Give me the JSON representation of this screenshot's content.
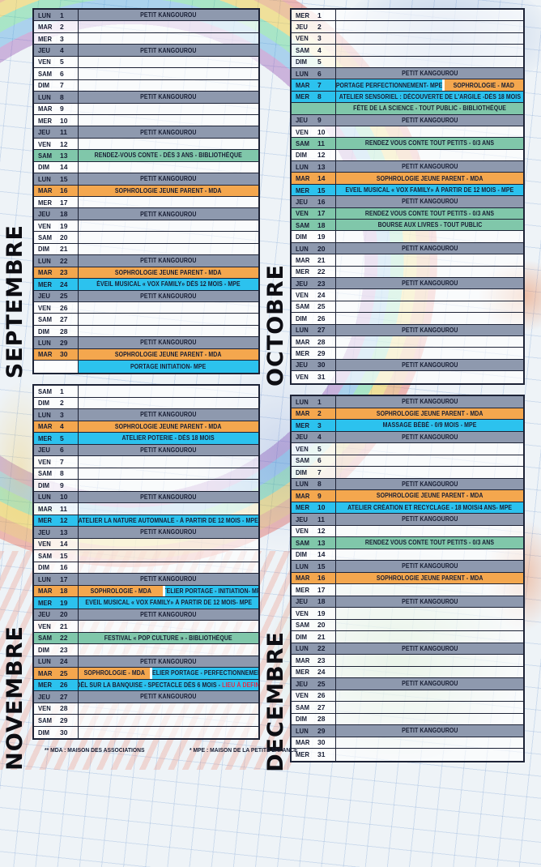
{
  "palette": {
    "gray": "#8e99ae",
    "orange": "#f4a74e",
    "cyan": "#2cc2ee",
    "teal": "#80c7aa",
    "red": "#e02a46",
    "empty_event": "rgba(255,255,255,0.60)",
    "empty_day": "rgba(255,255,255,0.78)"
  },
  "footer": {
    "mda": "** MDA : MAISON DES ASSOCIATIONS",
    "mpe": "* MPE : MAISON DE LA PETITE ENFANCE"
  },
  "months": [
    {
      "name": "SEPTEMBRE",
      "rows": [
        {
          "d": "LUN",
          "n": "1",
          "c": [
            {
              "t": "PETIT KANGOUROU",
              "k": "gray"
            }
          ]
        },
        {
          "d": "MAR",
          "n": "2",
          "c": []
        },
        {
          "d": "MER",
          "n": "3",
          "c": []
        },
        {
          "d": "JEU",
          "n": "4",
          "c": [
            {
              "t": "PETIT KANGOUROU",
              "k": "gray"
            }
          ]
        },
        {
          "d": "VEN",
          "n": "5",
          "c": []
        },
        {
          "d": "SAM",
          "n": "6",
          "c": []
        },
        {
          "d": "DIM",
          "n": "7",
          "c": []
        },
        {
          "d": "LUN",
          "n": "8",
          "c": [
            {
              "t": "PETIT KANGOUROU",
              "k": "gray"
            }
          ]
        },
        {
          "d": "MAR",
          "n": "9",
          "c": []
        },
        {
          "d": "MER",
          "n": "10",
          "c": []
        },
        {
          "d": "JEU",
          "n": "11",
          "c": [
            {
              "t": "PETIT KANGOUROU",
              "k": "gray"
            }
          ]
        },
        {
          "d": "VEN",
          "n": "12",
          "c": []
        },
        {
          "d": "SAM",
          "n": "13",
          "c": [
            {
              "t": "RENDEZ-VOUS CONTE - DÈS 3 ANS - BIBLIOTHÈQUE",
              "k": "teal"
            }
          ]
        },
        {
          "d": "DIM",
          "n": "14",
          "c": []
        },
        {
          "d": "LUN",
          "n": "15",
          "c": [
            {
              "t": "PETIT KANGOUROU",
              "k": "gray"
            }
          ]
        },
        {
          "d": "MAR",
          "n": "16",
          "c": [
            {
              "t": "SOPHROLOGIE JEUNE PARENT - MDA",
              "k": "orange"
            }
          ]
        },
        {
          "d": "MER",
          "n": "17",
          "c": []
        },
        {
          "d": "JEU",
          "n": "18",
          "c": [
            {
              "t": "PETIT KANGOUROU",
              "k": "gray"
            }
          ]
        },
        {
          "d": "VEN",
          "n": "19",
          "c": []
        },
        {
          "d": "SAM",
          "n": "20",
          "c": []
        },
        {
          "d": "DIM",
          "n": "21",
          "c": []
        },
        {
          "d": "LUN",
          "n": "22",
          "c": [
            {
              "t": "PETIT KANGOUROU",
              "k": "gray"
            }
          ]
        },
        {
          "d": "MAR",
          "n": "23",
          "c": [
            {
              "t": "SOPHROLOGIE JEUNE PARENT - MDA",
              "k": "orange"
            }
          ]
        },
        {
          "d": "MER",
          "n": "24",
          "c": [
            {
              "t": "ÉVEIL MUSICAL « VOX FAMILY» DÈS 12 MOIS - MPE",
              "k": "cyan"
            }
          ]
        },
        {
          "d": "JEU",
          "n": "25",
          "c": [
            {
              "t": "PETIT KANGOUROU",
              "k": "gray"
            }
          ]
        },
        {
          "d": "VEN",
          "n": "26",
          "c": []
        },
        {
          "d": "SAM",
          "n": "27",
          "c": []
        },
        {
          "d": "DIM",
          "n": "28",
          "c": []
        },
        {
          "d": "LUN",
          "n": "29",
          "c": [
            {
              "t": "PETIT KANGOUROU",
              "k": "gray"
            }
          ]
        },
        {
          "d": "MAR",
          "n": "30",
          "c": [
            {
              "t": "SOPHROLOGIE JEUNE PARENT - MDA",
              "k": "orange"
            }
          ]
        },
        {
          "d": "",
          "n": "",
          "dc": "none",
          "c": [
            {
              "t": "PORTAGE INITIATION- MPE",
              "k": "cyan"
            }
          ]
        }
      ]
    },
    {
      "name": "OCTOBRE",
      "rows": [
        {
          "d": "MER",
          "n": "1",
          "c": []
        },
        {
          "d": "JEU",
          "n": "2",
          "c": []
        },
        {
          "d": "VEN",
          "n": "3",
          "c": []
        },
        {
          "d": "SAM",
          "n": "4",
          "c": []
        },
        {
          "d": "DIM",
          "n": "5",
          "c": []
        },
        {
          "d": "LUN",
          "n": "6",
          "c": [
            {
              "t": "PETIT KANGOUROU",
              "k": "gray"
            }
          ]
        },
        {
          "d": "MAR",
          "n": "7",
          "c": [
            {
              "t": "PORTAGE PERFECTIONNEMENT- MPE",
              "k": "cyan",
              "f": "1.15"
            },
            {
              "t": "SOPHROLOGIE - MAD",
              "k": "orange",
              "f": "0.85"
            }
          ]
        },
        {
          "d": "MER",
          "n": "8",
          "c": [
            {
              "t": "ATELIER SENSORIEL : DÉCOUVERTE DE L'ARGILE -DÈS 18 MOIS",
              "k": "cyan"
            }
          ]
        },
        {
          "d": "",
          "n": "",
          "dc": "teal",
          "c": [
            {
              "t": "FÊTE DE LA SCIENCE - TOUT PUBLIC - BIBLIOTHÈQUE",
              "k": "teal"
            }
          ]
        },
        {
          "d": "JEU",
          "n": "9",
          "c": [
            {
              "t": "PETIT KANGOUROU",
              "k": "gray"
            }
          ]
        },
        {
          "d": "VEN",
          "n": "10",
          "c": []
        },
        {
          "d": "SAM",
          "n": "11",
          "c": [
            {
              "t": "RENDEZ VOUS CONTE TOUT PETITS - 0/3 ANS",
              "k": "teal"
            }
          ]
        },
        {
          "d": "DIM",
          "n": "12",
          "c": []
        },
        {
          "d": "LUN",
          "n": "13",
          "c": [
            {
              "t": "PETIT KANGOUROU",
              "k": "gray"
            }
          ]
        },
        {
          "d": "MAR",
          "n": "14",
          "c": [
            {
              "t": "SOPHROLOGIE JEUNE PARENT - MDA",
              "k": "orange"
            }
          ]
        },
        {
          "d": "MER",
          "n": "15",
          "c": [
            {
              "t": "EVEIL MUSICAL « VOX FAMILY» À PARTIR DE 12 MOIS - MPE",
              "k": "cyan"
            }
          ]
        },
        {
          "d": "JEU",
          "n": "16",
          "c": [
            {
              "t": "PETIT KANGOUROU",
              "k": "gray"
            }
          ]
        },
        {
          "d": "VEN",
          "n": "17",
          "c": [
            {
              "t": "RENDEZ VOUS CONTE TOUT PETITS - 0/3 ANS",
              "k": "teal"
            }
          ]
        },
        {
          "d": "SAM",
          "n": "18",
          "c": [
            {
              "t": "BOURSE AUX LIVRES - TOUT PUBLIC",
              "k": "teal"
            }
          ]
        },
        {
          "d": "DIM",
          "n": "19",
          "c": []
        },
        {
          "d": "LUN",
          "n": "20",
          "c": [
            {
              "t": "PETIT KANGOUROU",
              "k": "gray"
            }
          ]
        },
        {
          "d": "MAR",
          "n": "21",
          "c": []
        },
        {
          "d": "MER",
          "n": "22",
          "c": []
        },
        {
          "d": "JEU",
          "n": "23",
          "c": [
            {
              "t": "PETIT KANGOUROU",
              "k": "gray"
            }
          ]
        },
        {
          "d": "VEN",
          "n": "24",
          "c": []
        },
        {
          "d": "SAM",
          "n": "25",
          "c": []
        },
        {
          "d": "DIM",
          "n": "26",
          "c": []
        },
        {
          "d": "LUN",
          "n": "27",
          "c": [
            {
              "t": "PETIT KANGOUROU",
              "k": "gray"
            }
          ]
        },
        {
          "d": "MAR",
          "n": "28",
          "c": []
        },
        {
          "d": "MER",
          "n": "29",
          "c": []
        },
        {
          "d": "JEU",
          "n": "30",
          "c": [
            {
              "t": "PETIT KANGOUROU",
              "k": "gray"
            }
          ]
        },
        {
          "d": "VEN",
          "n": "31",
          "c": []
        }
      ]
    },
    {
      "name": "NOVEMBRE",
      "rows": [
        {
          "d": "SAM",
          "n": "1",
          "c": []
        },
        {
          "d": "DIM",
          "n": "2",
          "c": []
        },
        {
          "d": "LUN",
          "n": "3",
          "c": [
            {
              "t": "PETIT KANGOUROU",
              "k": "gray"
            }
          ]
        },
        {
          "d": "MAR",
          "n": "4",
          "c": [
            {
              "t": "SOPHROLOGIE JEUNE PARENT - MDA",
              "k": "orange"
            }
          ]
        },
        {
          "d": "MER",
          "n": "5",
          "c": [
            {
              "t": "ATELIER POTERIE - DÈS 18 MOIS",
              "k": "cyan"
            }
          ]
        },
        {
          "d": "JEU",
          "n": "6",
          "c": [
            {
              "t": "PETIT KANGOUROU",
              "k": "gray"
            }
          ]
        },
        {
          "d": "VEN",
          "n": "7",
          "c": []
        },
        {
          "d": "SAM",
          "n": "8",
          "c": []
        },
        {
          "d": "DIM",
          "n": "9",
          "c": []
        },
        {
          "d": "LUN",
          "n": "10",
          "c": [
            {
              "t": "PETIT KANGOUROU",
              "k": "gray"
            }
          ]
        },
        {
          "d": "MAR",
          "n": "11",
          "c": []
        },
        {
          "d": "MER",
          "n": "12",
          "c": [
            {
              "t": "ATELIER LA NATURE AUTOMNALE - À PARTIR DE 12 MOIS - MPE",
              "k": "cyan"
            }
          ]
        },
        {
          "d": "JEU",
          "n": "13",
          "c": [
            {
              "t": "PETIT KANGOUROU",
              "k": "gray"
            }
          ]
        },
        {
          "d": "VEN",
          "n": "14",
          "c": []
        },
        {
          "d": "SAM",
          "n": "15",
          "c": []
        },
        {
          "d": "DIM",
          "n": "16",
          "c": []
        },
        {
          "d": "LUN",
          "n": "17",
          "c": [
            {
              "t": "PETIT KANGOUROU",
              "k": "gray"
            }
          ]
        },
        {
          "d": "MAR",
          "n": "18",
          "c": [
            {
              "t": "SOPHROLOGIE - MDA",
              "k": "orange",
              "f": "0.95"
            },
            {
              "t": "ATELIER PORTAGE - INITIATION- MPE",
              "k": "cyan",
              "f": "1.05"
            }
          ]
        },
        {
          "d": "MER",
          "n": "19",
          "c": [
            {
              "t": "EVEIL MUSICAL « VOX FAMILY» À PARTIR DE 12 MOIS- MPE",
              "k": "cyan"
            }
          ]
        },
        {
          "d": "JEU",
          "n": "20",
          "c": [
            {
              "t": "PETIT KANGOUROU",
              "k": "gray"
            }
          ]
        },
        {
          "d": "VEN",
          "n": "21",
          "c": []
        },
        {
          "d": "SAM",
          "n": "22",
          "c": [
            {
              "t": "FESTIVAL « POP CULTURE » - BIBLIOTHÈQUE",
              "k": "teal"
            }
          ]
        },
        {
          "d": "DIM",
          "n": "23",
          "c": []
        },
        {
          "d": "LUN",
          "n": "24",
          "c": [
            {
              "t": "PETIT KANGOUROU",
              "k": "gray"
            }
          ]
        },
        {
          "d": "MAR",
          "n": "25",
          "c": [
            {
              "t": "SOPHROLOGIE - MDA",
              "k": "orange",
              "f": "0.8"
            },
            {
              "t": "ATELIER PORTAGE - PERFECTIONNEMENT",
              "k": "cyan",
              "f": "1.2"
            }
          ]
        },
        {
          "d": "MER",
          "n": "26",
          "c": [
            {
              "t": "NOËL SUR LA BANQUISE - SPECTACLE DÈS 6 MOIS - ",
              "t2": "LIEU À DEFINIR",
              "k": "cyan"
            }
          ]
        },
        {
          "d": "JEU",
          "n": "27",
          "c": [
            {
              "t": "PETIT KANGOUROU",
              "k": "gray"
            }
          ]
        },
        {
          "d": "VEN",
          "n": "28",
          "c": []
        },
        {
          "d": "SAM",
          "n": "29",
          "c": []
        },
        {
          "d": "DIM",
          "n": "30",
          "c": []
        }
      ]
    },
    {
      "name": "DECEMBRE",
      "rows": [
        {
          "d": "LUN",
          "n": "1",
          "c": [
            {
              "t": "PETIT KANGOUROU",
              "k": "gray"
            }
          ]
        },
        {
          "d": "MAR",
          "n": "2",
          "c": [
            {
              "t": "SOPHROLOGIE JEUNE PARENT - MDA",
              "k": "orange"
            }
          ]
        },
        {
          "d": "MER",
          "n": "3",
          "c": [
            {
              "t": "MASSAGE BÉBÉ - 0/9 MOIS - MPE",
              "k": "cyan"
            }
          ]
        },
        {
          "d": "JEU",
          "n": "4",
          "c": [
            {
              "t": "PETIT KANGOUROU",
              "k": "gray"
            }
          ]
        },
        {
          "d": "VEN",
          "n": "5",
          "c": []
        },
        {
          "d": "SAM",
          "n": "6",
          "c": []
        },
        {
          "d": "DIM",
          "n": "7",
          "c": []
        },
        {
          "d": "LUN",
          "n": "8",
          "c": [
            {
              "t": "PETIT KANGOUROU",
              "k": "gray"
            }
          ]
        },
        {
          "d": "MAR",
          "n": "9",
          "c": [
            {
              "t": "SOPHROLOGIE JEUNE PARENT - MDA",
              "k": "orange"
            }
          ]
        },
        {
          "d": "MER",
          "n": "10",
          "c": [
            {
              "t": "ATELIER CRÉATION ET RECYCLAGE - 18 MOIS/4 ANS- MPE",
              "k": "cyan"
            }
          ]
        },
        {
          "d": "JEU",
          "n": "11",
          "c": [
            {
              "t": "PETIT KANGOUROU",
              "k": "gray"
            }
          ]
        },
        {
          "d": "VEN",
          "n": "12",
          "c": []
        },
        {
          "d": "SAM",
          "n": "13",
          "c": [
            {
              "t": "RENDEZ VOUS CONTE TOUT PETITS - 0/3 ANS",
              "k": "teal"
            }
          ]
        },
        {
          "d": "DIM",
          "n": "14",
          "c": []
        },
        {
          "d": "LUN",
          "n": "15",
          "c": [
            {
              "t": "PETIT KANGOUROU",
              "k": "gray"
            }
          ]
        },
        {
          "d": "MAR",
          "n": "16",
          "c": [
            {
              "t": "SOPHROLOGIE JEUNE PARENT - MDA",
              "k": "orange"
            }
          ]
        },
        {
          "d": "MER",
          "n": "17",
          "c": []
        },
        {
          "d": "JEU",
          "n": "18",
          "c": [
            {
              "t": "PETIT KANGOUROU",
              "k": "gray"
            }
          ]
        },
        {
          "d": "VEN",
          "n": "19",
          "c": []
        },
        {
          "d": "SAM",
          "n": "20",
          "c": []
        },
        {
          "d": "DIM",
          "n": "21",
          "c": []
        },
        {
          "d": "LUN",
          "n": "22",
          "c": [
            {
              "t": "PETIT KANGOUROU",
              "k": "gray"
            }
          ]
        },
        {
          "d": "MAR",
          "n": "23",
          "c": []
        },
        {
          "d": "MER",
          "n": "24",
          "c": []
        },
        {
          "d": "JEU",
          "n": "25",
          "c": [
            {
              "t": "PETIT KANGOUROU",
              "k": "gray"
            }
          ]
        },
        {
          "d": "VEN",
          "n": "26",
          "c": []
        },
        {
          "d": "SAM",
          "n": "27",
          "c": []
        },
        {
          "d": "DIM",
          "n": "28",
          "c": []
        },
        {
          "d": "LUN",
          "n": "29",
          "c": [
            {
              "t": "PETIT KANGOUROU",
              "k": "gray"
            }
          ]
        },
        {
          "d": "MAR",
          "n": "30",
          "c": []
        },
        {
          "d": "MER",
          "n": "31",
          "c": []
        }
      ]
    }
  ]
}
